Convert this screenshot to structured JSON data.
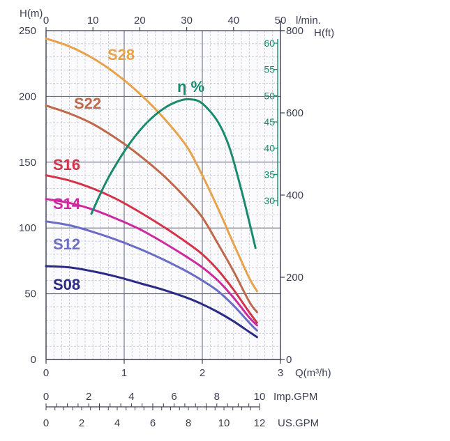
{
  "chart_data": {
    "type": "line",
    "x": {
      "label": "Q(m³/h)",
      "range": [
        0,
        3
      ],
      "ticks": [
        "0",
        "1",
        "2",
        "3"
      ]
    },
    "x_top": {
      "label": "l/min.",
      "range": [
        0,
        50
      ],
      "ticks": [
        "0",
        "10",
        "20",
        "30",
        "40",
        "50"
      ]
    },
    "x_imp": {
      "label": "Imp.GPM",
      "ticks": [
        "0",
        "2",
        "4",
        "6",
        "8",
        "10"
      ]
    },
    "x_us": {
      "label": "US.GPM",
      "ticks": [
        "0",
        "2",
        "4",
        "6",
        "8",
        "10",
        "12"
      ]
    },
    "y": {
      "label": "H(m)",
      "range": [
        0,
        250
      ],
      "ticks": [
        "0",
        "50",
        "100",
        "150",
        "200",
        "250"
      ]
    },
    "y_right": {
      "label": "H(ft)",
      "range": [
        0,
        800
      ],
      "ticks": [
        "0",
        "200",
        "400",
        "600",
        "800"
      ]
    },
    "y_eff": {
      "range": [
        30,
        60
      ],
      "ticks": [
        "30",
        "35",
        "40",
        "45",
        "50",
        "55",
        "60"
      ]
    },
    "grid": true,
    "series": [
      {
        "name": "S28",
        "color": "#e8a34a",
        "x": [
          0,
          0.3,
          0.6,
          0.9,
          1.2,
          1.5,
          1.8,
          2.0,
          2.2,
          2.4,
          2.6,
          2.7
        ],
        "y": [
          244,
          238,
          229,
          217,
          202,
          184,
          162,
          140,
          115,
          88,
          62,
          52
        ]
      },
      {
        "name": "S22",
        "color": "#c0684a",
        "x": [
          0,
          0.3,
          0.6,
          0.9,
          1.2,
          1.5,
          1.8,
          2.0,
          2.2,
          2.4,
          2.6,
          2.7
        ],
        "y": [
          193,
          187,
          179,
          168,
          155,
          140,
          122,
          108,
          88,
          67,
          44,
          36
        ]
      },
      {
        "name": "S16",
        "color": "#d33448",
        "x": [
          0,
          0.3,
          0.6,
          0.9,
          1.2,
          1.5,
          1.8,
          2.0,
          2.2,
          2.4,
          2.6,
          2.7
        ],
        "y": [
          140,
          136,
          130,
          122,
          112,
          101,
          89,
          80,
          68,
          53,
          36,
          28
        ]
      },
      {
        "name": "S14",
        "color": "#cc2a9e",
        "x": [
          0,
          0.3,
          0.6,
          0.9,
          1.2,
          1.5,
          1.8,
          2.0,
          2.2,
          2.4,
          2.6,
          2.7
        ],
        "y": [
          122,
          119,
          114,
          107,
          99,
          89,
          78,
          70,
          60,
          47,
          32,
          26
        ]
      },
      {
        "name": "S12",
        "color": "#6a6cc6",
        "x": [
          0,
          0.3,
          0.6,
          0.9,
          1.2,
          1.5,
          1.8,
          2.0,
          2.2,
          2.4,
          2.6,
          2.7
        ],
        "y": [
          105,
          102,
          97,
          91,
          84,
          76,
          67,
          60,
          52,
          41,
          28,
          22
        ]
      },
      {
        "name": "S08",
        "color": "#2b2a86",
        "x": [
          0,
          0.3,
          0.6,
          0.9,
          1.2,
          1.5,
          1.8,
          2.0,
          2.2,
          2.4,
          2.6,
          2.7
        ],
        "y": [
          71,
          70,
          67,
          63,
          58,
          53,
          47,
          42,
          36,
          29,
          21,
          17
        ]
      },
      {
        "name": "η %",
        "color": "#1a8a6e",
        "axis": "eff",
        "x": [
          0.58,
          0.75,
          0.9,
          1.1,
          1.3,
          1.5,
          1.7,
          1.85,
          2.0,
          2.2,
          2.35,
          2.5,
          2.6,
          2.68
        ],
        "y": [
          27.5,
          33,
          37,
          41.5,
          45,
          47.5,
          49,
          49.3,
          48.5,
          45,
          40,
          32,
          26,
          21
        ]
      }
    ]
  }
}
